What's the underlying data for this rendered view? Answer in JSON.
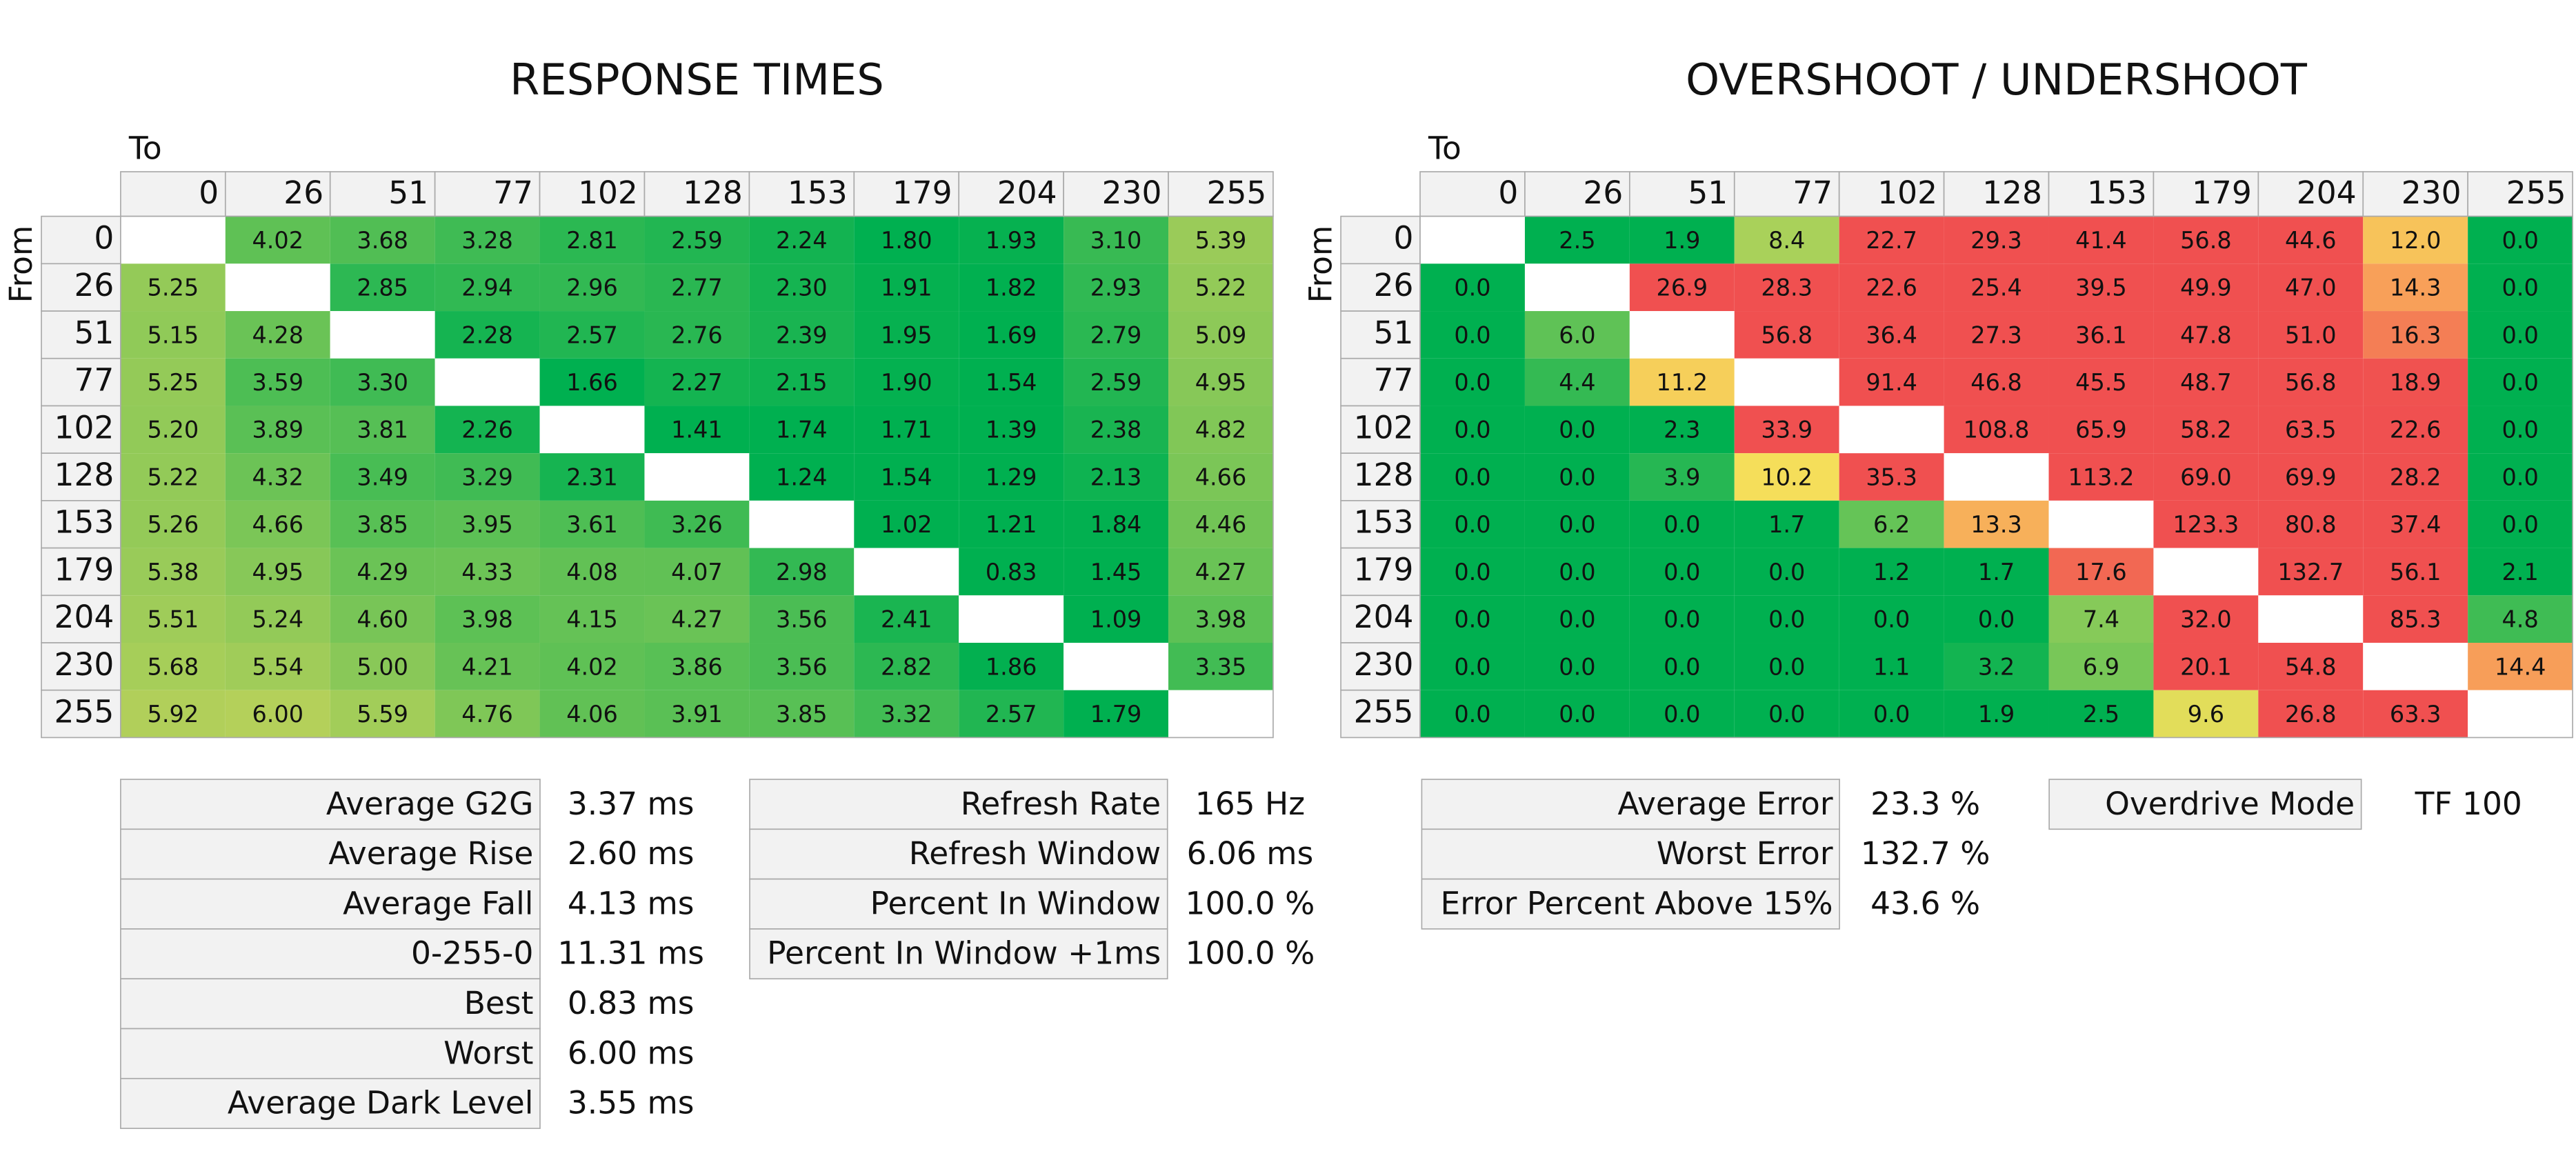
{
  "response_times": {
    "title": "RESPONSE TIMES",
    "to_label": "To",
    "from_label": "From",
    "columns": [
      "0",
      "26",
      "51",
      "77",
      "102",
      "128",
      "153",
      "179",
      "204",
      "230",
      "255"
    ],
    "rows": [
      "0",
      "26",
      "51",
      "77",
      "102",
      "128",
      "153",
      "179",
      "204",
      "230",
      "255"
    ],
    "cells": [
      [
        null,
        "4.02",
        "3.68",
        "3.28",
        "2.81",
        "2.59",
        "2.24",
        "1.80",
        "1.93",
        "3.10",
        "5.39"
      ],
      [
        "5.25",
        null,
        "2.85",
        "2.94",
        "2.96",
        "2.77",
        "2.30",
        "1.91",
        "1.82",
        "2.93",
        "5.22"
      ],
      [
        "5.15",
        "4.28",
        null,
        "2.28",
        "2.57",
        "2.76",
        "2.39",
        "1.95",
        "1.69",
        "2.79",
        "5.09"
      ],
      [
        "5.25",
        "3.59",
        "3.30",
        null,
        "1.66",
        "2.27",
        "2.15",
        "1.90",
        "1.54",
        "2.59",
        "4.95"
      ],
      [
        "5.20",
        "3.89",
        "3.81",
        "2.26",
        null,
        "1.41",
        "1.74",
        "1.71",
        "1.39",
        "2.38",
        "4.82"
      ],
      [
        "5.22",
        "4.32",
        "3.49",
        "3.29",
        "2.31",
        null,
        "1.24",
        "1.54",
        "1.29",
        "2.13",
        "4.66"
      ],
      [
        "5.26",
        "4.66",
        "3.85",
        "3.95",
        "3.61",
        "3.26",
        null,
        "1.02",
        "1.21",
        "1.84",
        "4.46"
      ],
      [
        "5.38",
        "4.95",
        "4.29",
        "4.33",
        "4.08",
        "4.07",
        "2.98",
        null,
        "0.83",
        "1.45",
        "4.27"
      ],
      [
        "5.51",
        "5.24",
        "4.60",
        "3.98",
        "4.15",
        "4.27",
        "3.56",
        "2.41",
        null,
        "1.09",
        "3.98"
      ],
      [
        "5.68",
        "5.54",
        "5.00",
        "4.21",
        "4.02",
        "3.86",
        "3.56",
        "2.82",
        "1.86",
        null,
        "3.35"
      ],
      [
        "5.92",
        "6.00",
        "5.59",
        "4.76",
        "4.06",
        "3.91",
        "3.85",
        "3.32",
        "2.57",
        "1.79",
        null
      ]
    ]
  },
  "overshoot": {
    "title": "OVERSHOOT / UNDERSHOOT",
    "to_label": "To",
    "from_label": "From",
    "columns": [
      "0",
      "26",
      "51",
      "77",
      "102",
      "128",
      "153",
      "179",
      "204",
      "230",
      "255"
    ],
    "rows": [
      "0",
      "26",
      "51",
      "77",
      "102",
      "128",
      "153",
      "179",
      "204",
      "230",
      "255"
    ],
    "cells": [
      [
        null,
        "2.5",
        "1.9",
        "8.4",
        "22.7",
        "29.3",
        "41.4",
        "56.8",
        "44.6",
        "12.0",
        "0.0"
      ],
      [
        "0.0",
        null,
        "26.9",
        "28.3",
        "22.6",
        "25.4",
        "39.5",
        "49.9",
        "47.0",
        "14.3",
        "0.0"
      ],
      [
        "0.0",
        "6.0",
        null,
        "56.8",
        "36.4",
        "27.3",
        "36.1",
        "47.8",
        "51.0",
        "16.3",
        "0.0"
      ],
      [
        "0.0",
        "4.4",
        "11.2",
        null,
        "91.4",
        "46.8",
        "45.5",
        "48.7",
        "56.8",
        "18.9",
        "0.0"
      ],
      [
        "0.0",
        "0.0",
        "2.3",
        "33.9",
        null,
        "108.8",
        "65.9",
        "58.2",
        "63.5",
        "22.6",
        "0.0"
      ],
      [
        "0.0",
        "0.0",
        "3.9",
        "10.2",
        "35.3",
        null,
        "113.2",
        "69.0",
        "69.9",
        "28.2",
        "0.0"
      ],
      [
        "0.0",
        "0.0",
        "0.0",
        "1.7",
        "6.2",
        "13.3",
        null,
        "123.3",
        "80.8",
        "37.4",
        "0.0"
      ],
      [
        "0.0",
        "0.0",
        "0.0",
        "0.0",
        "1.2",
        "1.7",
        "17.6",
        null,
        "132.7",
        "56.1",
        "2.1"
      ],
      [
        "0.0",
        "0.0",
        "0.0",
        "0.0",
        "0.0",
        "0.0",
        "7.4",
        "32.0",
        null,
        "85.3",
        "4.8"
      ],
      [
        "0.0",
        "0.0",
        "0.0",
        "0.0",
        "1.1",
        "3.2",
        "6.9",
        "20.1",
        "54.8",
        null,
        "14.4"
      ],
      [
        "0.0",
        "0.0",
        "0.0",
        "0.0",
        "0.0",
        "1.9",
        "2.5",
        "9.6",
        "26.8",
        "63.3",
        null
      ]
    ]
  },
  "response_stats": [
    {
      "label": "Average G2G",
      "value": "3.37 ms"
    },
    {
      "label": "Average Rise",
      "value": "2.60 ms"
    },
    {
      "label": "Average Fall",
      "value": "4.13 ms"
    },
    {
      "label": "0-255-0",
      "value": "11.31 ms"
    },
    {
      "label": "Best",
      "value": "0.83 ms"
    },
    {
      "label": "Worst",
      "value": "6.00 ms"
    },
    {
      "label": "Average Dark Level",
      "value": "3.55 ms"
    }
  ],
  "refresh_stats": [
    {
      "label": "Refresh Rate",
      "value": "165 Hz"
    },
    {
      "label": "Refresh Window",
      "value": "6.06 ms"
    },
    {
      "label": "Percent In Window",
      "value": "100.0 %"
    },
    {
      "label": "Percent In Window +1ms",
      "value": "100.0 %"
    }
  ],
  "overshoot_stats": [
    {
      "label": "Average Error",
      "value": "23.3 %"
    },
    {
      "label": "Worst Error",
      "value": "132.7 %"
    },
    {
      "label": "Error Percent Above 15%",
      "value": "43.6 %"
    }
  ],
  "overdrive_stats": [
    {
      "label": "Overdrive Mode",
      "value": "TF 100"
    }
  ]
}
